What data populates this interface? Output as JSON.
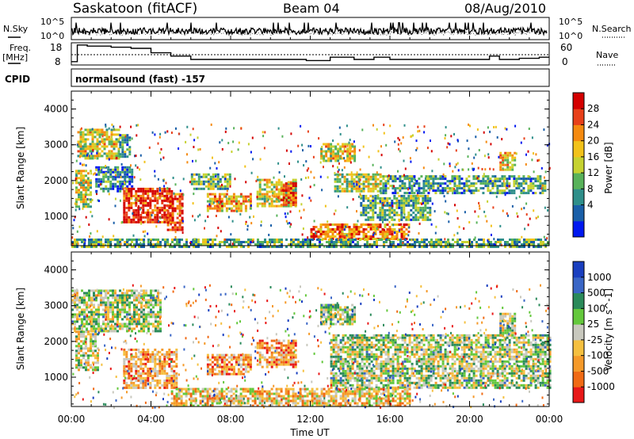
{
  "header": {
    "station": "Saskatoon (fitACF)",
    "beam": "Beam 04",
    "date": "08/Aug/2010"
  },
  "panels": {
    "sky_noise": {
      "left_label": "N.Sky",
      "left_ticks": [
        "10^5",
        "10^0"
      ],
      "right_ticks": [
        "10^5",
        "10^0"
      ],
      "right_label": "N.Search"
    },
    "frequency": {
      "left_label_line1": "Freq.",
      "left_label_line2": "[MHz]",
      "left_ticks": [
        "18",
        "8"
      ],
      "right_ticks": [
        "60",
        "0"
      ],
      "right_label": "Nave"
    },
    "cpid": {
      "label": "CPID",
      "value": "normalsound (fast) -157"
    }
  },
  "colorbars": {
    "power": {
      "title": "Power [dB]",
      "ticks": [
        "28",
        "24",
        "20",
        "16",
        "12",
        "8",
        "4"
      ],
      "colors": [
        "#0018f0",
        "#1a5fa8",
        "#2f8f8a",
        "#58b25a",
        "#c6d230",
        "#f2c21a",
        "#f58a10",
        "#e8401a",
        "#d40000"
      ]
    },
    "velocity": {
      "title": "Velocity [m s^-1]",
      "ticks": [
        "1000",
        "500",
        "100",
        "25",
        "-25",
        "-100",
        "-500",
        "-1000"
      ],
      "colors": [
        "#1a3fbf",
        "#3a66c6",
        "#2a8a5a",
        "#64c83c",
        "#c8c8be",
        "#f5c040",
        "#f59a2a",
        "#f06a14",
        "#e81818"
      ]
    }
  },
  "chart_data": [
    {
      "type": "heatmap",
      "ylabel": "Slant Range [km]",
      "yticks": [
        1000,
        2000,
        3000,
        4000
      ],
      "ylim": [
        180,
        4500
      ],
      "xlim": [
        0,
        24
      ],
      "xticks": [
        "00:00",
        "04:00",
        "08:00",
        "12:00",
        "16:00",
        "20:00",
        "00:00"
      ],
      "colorbar": "Power [dB]",
      "regions": [
        {
          "t0": 0.3,
          "t1": 2.4,
          "r0": 2600,
          "r1": 3450,
          "level": 0.55
        },
        {
          "t0": 2.4,
          "t1": 2.9,
          "r0": 2700,
          "r1": 3300,
          "level": 0.35
        },
        {
          "t0": 0.2,
          "t1": 1.0,
          "r0": 1300,
          "r1": 2300,
          "level": 0.5
        },
        {
          "t0": 1.2,
          "t1": 3.0,
          "r0": 1700,
          "r1": 2400,
          "level": 0.25
        },
        {
          "t0": 2.6,
          "t1": 5.0,
          "r0": 850,
          "r1": 1800,
          "level": 0.9
        },
        {
          "t0": 4.8,
          "t1": 5.6,
          "r0": 650,
          "r1": 1650,
          "level": 0.85
        },
        {
          "t0": 6.8,
          "t1": 9.0,
          "r0": 1150,
          "r1": 1650,
          "level": 0.65
        },
        {
          "t0": 9.3,
          "t1": 11.3,
          "r0": 1300,
          "r1": 2050,
          "level": 0.55
        },
        {
          "t0": 10.5,
          "t1": 11.3,
          "r0": 1350,
          "r1": 1950,
          "level": 0.85
        },
        {
          "t0": 6.0,
          "t1": 8.0,
          "r0": 1800,
          "r1": 2200,
          "level": 0.4
        },
        {
          "t0": 12.5,
          "t1": 14.2,
          "r0": 2550,
          "r1": 3050,
          "level": 0.55
        },
        {
          "t0": 13.2,
          "t1": 15.5,
          "r0": 1700,
          "r1": 2200,
          "level": 0.5
        },
        {
          "t0": 14.5,
          "t1": 18.0,
          "r0": 900,
          "r1": 1600,
          "level": 0.35
        },
        {
          "t0": 15.5,
          "t1": 23.8,
          "r0": 1650,
          "r1": 2150,
          "level": 0.3
        },
        {
          "t0": 12.0,
          "t1": 17.0,
          "r0": 400,
          "r1": 800,
          "level": 0.75
        },
        {
          "t0": 0.0,
          "t1": 24.0,
          "r0": 180,
          "r1": 380,
          "level": 0.35
        },
        {
          "t0": 21.5,
          "t1": 22.3,
          "r0": 2300,
          "r1": 2800,
          "level": 0.6
        }
      ]
    },
    {
      "type": "heatmap",
      "ylabel": "Slant Range [km]",
      "yticks": [
        1000,
        2000,
        3000,
        4000
      ],
      "ylim": [
        180,
        4500
      ],
      "xlim": [
        0,
        24
      ],
      "xticks": [
        "00:00",
        "04:00",
        "08:00",
        "12:00",
        "16:00",
        "20:00",
        "00:00"
      ],
      "xlabel": "Time UT",
      "colorbar": "Velocity [m s^-1]",
      "regions": [
        {
          "t0": 0.0,
          "t1": 4.5,
          "r0": 2300,
          "r1": 3450,
          "level": 0.45
        },
        {
          "t0": 0.2,
          "t1": 1.3,
          "r0": 1200,
          "r1": 2300,
          "level": 0.5
        },
        {
          "t0": 2.6,
          "t1": 5.3,
          "r0": 700,
          "r1": 1800,
          "level": 0.7
        },
        {
          "t0": 6.8,
          "t1": 9.0,
          "r0": 1100,
          "r1": 1650,
          "level": 0.72
        },
        {
          "t0": 9.3,
          "t1": 11.3,
          "r0": 1300,
          "r1": 2050,
          "level": 0.72
        },
        {
          "t0": 12.5,
          "t1": 14.2,
          "r0": 2500,
          "r1": 3050,
          "level": 0.45
        },
        {
          "t0": 13.0,
          "t1": 24.0,
          "r0": 700,
          "r1": 2200,
          "level": 0.45
        },
        {
          "t0": 21.5,
          "t1": 22.3,
          "r0": 2200,
          "r1": 2800,
          "level": 0.45
        },
        {
          "t0": 5.0,
          "t1": 17.0,
          "r0": 180,
          "r1": 700,
          "level": 0.62
        }
      ]
    }
  ]
}
